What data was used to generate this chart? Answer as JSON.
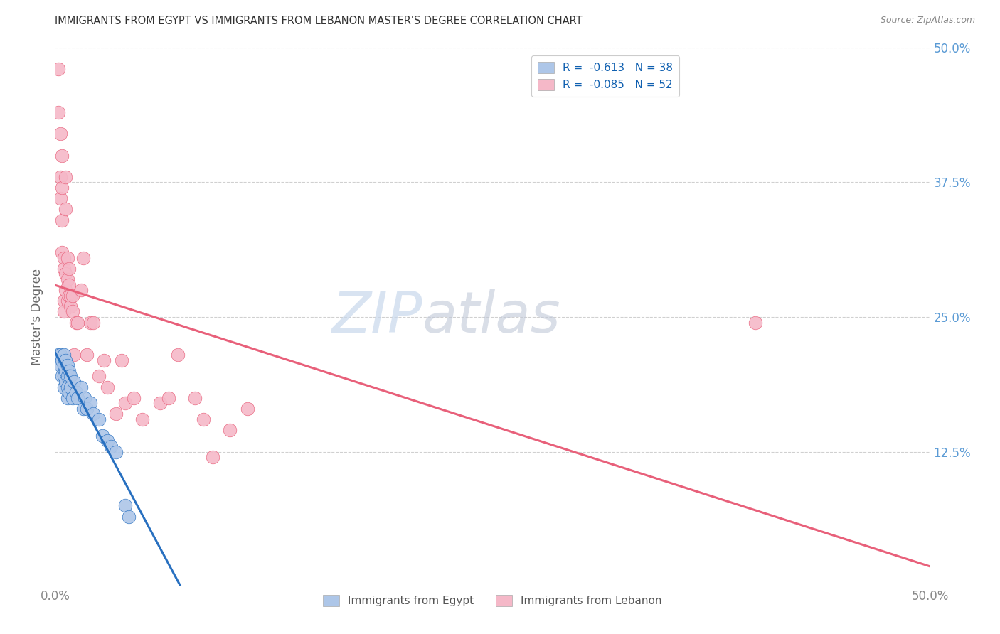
{
  "title": "IMMIGRANTS FROM EGYPT VS IMMIGRANTS FROM LEBANON MASTER'S DEGREE CORRELATION CHART",
  "source": "Source: ZipAtlas.com",
  "ylabel": "Master's Degree",
  "ytick_values": [
    0.0,
    0.125,
    0.25,
    0.375,
    0.5
  ],
  "ytick_labels_right": [
    "",
    "12.5%",
    "25.0%",
    "37.5%",
    "50.0%"
  ],
  "xlim": [
    0.0,
    0.5
  ],
  "ylim": [
    0.0,
    0.5
  ],
  "legend_egypt_r": "-0.613",
  "legend_egypt_n": "38",
  "legend_lebanon_r": "-0.085",
  "legend_lebanon_n": "52",
  "egypt_scatter_color": "#adc6e8",
  "lebanon_scatter_color": "#f5b8c8",
  "egypt_line_color": "#2870c0",
  "lebanon_line_color": "#e8607a",
  "grid_color": "#d0d0d0",
  "watermark_zip_color": "#c8d8ec",
  "watermark_atlas_color": "#c0c8d8",
  "egypt_x": [
    0.002,
    0.003,
    0.003,
    0.004,
    0.004,
    0.005,
    0.005,
    0.005,
    0.005,
    0.006,
    0.006,
    0.006,
    0.007,
    0.007,
    0.007,
    0.007,
    0.008,
    0.008,
    0.008,
    0.009,
    0.009,
    0.01,
    0.011,
    0.012,
    0.013,
    0.015,
    0.016,
    0.017,
    0.018,
    0.02,
    0.022,
    0.025,
    0.027,
    0.03,
    0.032,
    0.035,
    0.04,
    0.042
  ],
  "egypt_y": [
    0.215,
    0.215,
    0.205,
    0.21,
    0.195,
    0.215,
    0.205,
    0.195,
    0.185,
    0.21,
    0.2,
    0.19,
    0.205,
    0.195,
    0.185,
    0.175,
    0.2,
    0.195,
    0.18,
    0.195,
    0.185,
    0.175,
    0.19,
    0.18,
    0.175,
    0.185,
    0.165,
    0.175,
    0.165,
    0.17,
    0.16,
    0.155,
    0.14,
    0.135,
    0.13,
    0.125,
    0.075,
    0.065
  ],
  "lebanon_x": [
    0.002,
    0.002,
    0.003,
    0.003,
    0.003,
    0.004,
    0.004,
    0.004,
    0.004,
    0.005,
    0.005,
    0.005,
    0.005,
    0.006,
    0.006,
    0.006,
    0.006,
    0.007,
    0.007,
    0.007,
    0.008,
    0.008,
    0.008,
    0.009,
    0.009,
    0.01,
    0.01,
    0.011,
    0.012,
    0.013,
    0.015,
    0.016,
    0.018,
    0.02,
    0.022,
    0.025,
    0.028,
    0.03,
    0.035,
    0.038,
    0.04,
    0.045,
    0.05,
    0.06,
    0.065,
    0.07,
    0.08,
    0.085,
    0.09,
    0.1,
    0.11,
    0.4
  ],
  "lebanon_y": [
    0.48,
    0.44,
    0.42,
    0.38,
    0.36,
    0.4,
    0.37,
    0.34,
    0.31,
    0.305,
    0.295,
    0.265,
    0.255,
    0.38,
    0.35,
    0.29,
    0.275,
    0.305,
    0.285,
    0.265,
    0.295,
    0.28,
    0.27,
    0.27,
    0.26,
    0.27,
    0.255,
    0.215,
    0.245,
    0.245,
    0.275,
    0.305,
    0.215,
    0.245,
    0.245,
    0.195,
    0.21,
    0.185,
    0.16,
    0.21,
    0.17,
    0.175,
    0.155,
    0.17,
    0.175,
    0.215,
    0.175,
    0.155,
    0.12,
    0.145,
    0.165,
    0.245
  ]
}
